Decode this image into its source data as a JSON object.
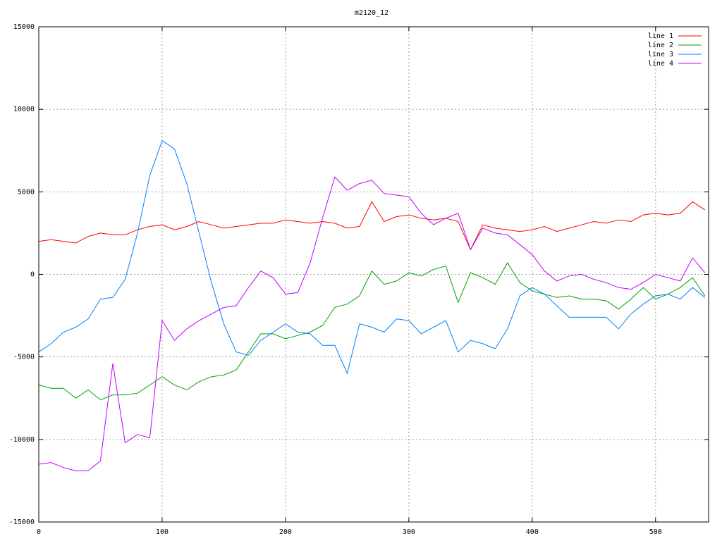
{
  "chart_data": {
    "type": "line",
    "title": "m2120_12",
    "x": [
      0,
      10,
      20,
      30,
      40,
      50,
      60,
      70,
      80,
      90,
      100,
      110,
      120,
      130,
      140,
      150,
      160,
      170,
      180,
      190,
      200,
      210,
      220,
      230,
      240,
      250,
      260,
      270,
      280,
      290,
      300,
      310,
      320,
      330,
      340,
      350,
      360,
      370,
      380,
      390,
      400,
      410,
      420,
      430,
      440,
      450,
      460,
      470,
      480,
      490,
      500,
      510,
      520,
      530,
      540
    ],
    "series": [
      {
        "name": "line 1",
        "color": "#ff0000",
        "values": [
          2000,
          2100,
          2000,
          1900,
          2300,
          2500,
          2400,
          2400,
          2700,
          2900,
          3000,
          2700,
          2900,
          3200,
          3000,
          2800,
          2900,
          3000,
          3100,
          3100,
          3300,
          3200,
          3100,
          3200,
          3100,
          2800,
          2900,
          4400,
          3200,
          3500,
          3600,
          3400,
          3300,
          3400,
          3200,
          1500,
          3000,
          2800,
          2700,
          2600,
          2700,
          2900,
          2600,
          2800,
          3000,
          3200,
          3100,
          3300,
          3200,
          3600,
          3700,
          3600,
          3700,
          4400,
          3900
        ]
      },
      {
        "name": "line 2",
        "color": "#00a000",
        "values": [
          -6700,
          -6900,
          -6900,
          -7500,
          -7000,
          -7600,
          -7300,
          -7300,
          -7200,
          -6700,
          -6200,
          -6700,
          -7000,
          -6500,
          -6200,
          -6100,
          -5800,
          -4700,
          -3600,
          -3600,
          -3900,
          -3700,
          -3500,
          -3100,
          -2000,
          -1800,
          -1300,
          200,
          -600,
          -400,
          100,
          -100,
          300,
          500,
          -1700,
          100,
          -200,
          -600,
          700,
          -500,
          -1000,
          -1200,
          -1400,
          -1300,
          -1500,
          -1500,
          -1600,
          -2100,
          -1500,
          -800,
          -1500,
          -1200,
          -800,
          -200,
          -1300
        ]
      },
      {
        "name": "line 3",
        "color": "#0080ff",
        "values": [
          -4700,
          -4200,
          -3500,
          -3200,
          -2700,
          -1500,
          -1400,
          -300,
          2500,
          6000,
          8100,
          7600,
          5500,
          2500,
          -500,
          -3000,
          -4700,
          -4900,
          -4000,
          -3500,
          -3000,
          -3500,
          -3600,
          -4300,
          -4300,
          -6000,
          -3000,
          -3200,
          -3500,
          -2700,
          -2800,
          -3600,
          -3200,
          -2800,
          -4700,
          -4000,
          -4200,
          -4500,
          -3300,
          -1300,
          -800,
          -1200,
          -1900,
          -2600,
          -2600,
          -2600,
          -2600,
          -3300,
          -2400,
          -1800,
          -1300,
          -1200,
          -1500,
          -800,
          -1400
        ]
      },
      {
        "name": "line 4",
        "color": "#c000ff",
        "values": [
          -11500,
          -11400,
          -11700,
          -11900,
          -11900,
          -11300,
          -5400,
          -10200,
          -9700,
          -9900,
          -2800,
          -4000,
          -3300,
          -2800,
          -2400,
          -2000,
          -1900,
          -800,
          200,
          -200,
          -1200,
          -1100,
          700,
          3400,
          5900,
          5100,
          5500,
          5700,
          4900,
          4800,
          4700,
          3700,
          3000,
          3400,
          3700,
          1500,
          2800,
          2500,
          2400,
          1800,
          1200,
          200,
          -400,
          -100,
          0,
          -300,
          -500,
          -800,
          -900,
          -500,
          0,
          -200,
          -400,
          1000,
          100
        ]
      }
    ],
    "xlim": [
      0,
      543
    ],
    "ylim": [
      -15000,
      15000
    ],
    "xticks": [
      0,
      100,
      200,
      300,
      400,
      500
    ],
    "yticks": [
      -15000,
      -10000,
      -5000,
      0,
      5000,
      10000,
      15000
    ],
    "grid": true,
    "legend": "top-right"
  }
}
